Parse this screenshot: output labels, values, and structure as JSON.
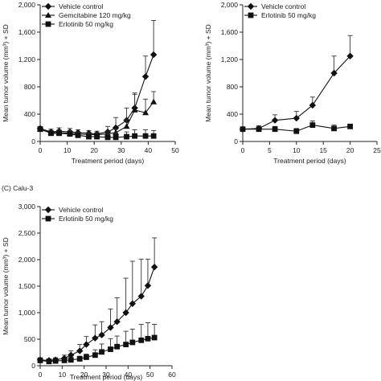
{
  "chart_data": [
    {
      "type": "line",
      "panel_label": "",
      "xlabel": "Treatment period (days)",
      "ylabel": "Mean tumor volume (mm³) + SD",
      "xlim": [
        0,
        50
      ],
      "ylim": [
        0,
        2000
      ],
      "xticks": [
        "0",
        "10",
        "20",
        "30",
        "40",
        "50"
      ],
      "xtick_values": [
        0,
        10,
        20,
        30,
        40,
        50
      ],
      "yticks": [
        "0",
        "400",
        "800",
        "1,200",
        "1,600",
        "2,000"
      ],
      "ytick_values": [
        0,
        400,
        800,
        1200,
        1600,
        2000
      ],
      "grid": false,
      "legend_position": "top-left",
      "series": [
        {
          "name": "Vehicle control",
          "marker": "diamond",
          "x": [
            0,
            4,
            7,
            11,
            14,
            18,
            21,
            25,
            28,
            32,
            35,
            39,
            42
          ],
          "y": [
            190,
            140,
            150,
            140,
            130,
            120,
            110,
            140,
            200,
            310,
            490,
            950,
            1270
          ],
          "sd": [
            30,
            40,
            50,
            50,
            40,
            40,
            40,
            80,
            150,
            180,
            200,
            300,
            500
          ]
        },
        {
          "name": "Gemcitabine 120 mg/kg",
          "marker": "triangle",
          "x": [
            0,
            4,
            7,
            11,
            14,
            18,
            21,
            25,
            28,
            32,
            35,
            39,
            42
          ],
          "y": [
            180,
            130,
            130,
            120,
            110,
            100,
            100,
            110,
            130,
            220,
            460,
            420,
            580
          ],
          "sd": [
            30,
            30,
            40,
            30,
            30,
            30,
            30,
            40,
            50,
            100,
            250,
            200,
            150
          ]
        },
        {
          "name": "Erlotinib 50 mg/kg",
          "marker": "square",
          "x": [
            0,
            4,
            7,
            11,
            14,
            18,
            21,
            25,
            28,
            32,
            35,
            39,
            42
          ],
          "y": [
            180,
            120,
            120,
            110,
            90,
            70,
            70,
            60,
            60,
            70,
            80,
            80,
            80
          ],
          "sd": [
            30,
            40,
            40,
            50,
            40,
            50,
            60,
            60,
            60,
            70,
            90,
            90,
            80
          ]
        }
      ]
    },
    {
      "type": "line",
      "panel_label": "",
      "xlabel": "Treatment period (days)",
      "ylabel": "Mean tumor volume (mm³) + SD",
      "xlim": [
        0,
        25
      ],
      "ylim": [
        0,
        2000
      ],
      "xticks": [
        "0",
        "5",
        "10",
        "15",
        "20",
        "25"
      ],
      "xtick_values": [
        0,
        5,
        10,
        15,
        20,
        25
      ],
      "yticks": [
        "0",
        "400",
        "800",
        "1,200",
        "1,600",
        "2,000"
      ],
      "ytick_values": [
        0,
        400,
        800,
        1200,
        1600,
        2000
      ],
      "grid": false,
      "legend_position": "top-left",
      "series": [
        {
          "name": "Vehicle control",
          "marker": "diamond",
          "x": [
            0,
            3,
            6,
            10,
            13,
            17,
            20
          ],
          "y": [
            180,
            190,
            310,
            340,
            530,
            1000,
            1250
          ],
          "sd": [
            30,
            40,
            80,
            100,
            120,
            250,
            300
          ]
        },
        {
          "name": "Erlotinib 50 mg/kg",
          "marker": "square",
          "x": [
            0,
            3,
            6,
            10,
            13,
            17,
            20
          ],
          "y": [
            180,
            180,
            180,
            150,
            240,
            190,
            220
          ],
          "sd": [
            20,
            30,
            40,
            40,
            60,
            50,
            30
          ]
        }
      ]
    },
    {
      "type": "line",
      "panel_label": "(C)  Calu-3",
      "xlabel": "Treatment period (days)",
      "ylabel": "Mean tumor volume (mm³) + SD",
      "xlim": [
        0,
        60
      ],
      "ylim": [
        0,
        3000
      ],
      "xticks": [
        "0",
        "10",
        "20",
        "30",
        "40",
        "50",
        "60"
      ],
      "xtick_values": [
        0,
        10,
        20,
        30,
        40,
        50,
        60
      ],
      "yticks": [
        "0",
        "500",
        "1,000",
        "1,500",
        "2,000",
        "2,500",
        "3,000"
      ],
      "ytick_values": [
        0,
        500,
        1000,
        1500,
        2000,
        2500,
        3000
      ],
      "grid": false,
      "legend_position": "top-left",
      "series": [
        {
          "name": "Vehicle control",
          "marker": "diamond",
          "x": [
            0,
            4,
            7,
            11,
            14,
            18,
            21,
            25,
            28,
            32,
            35,
            39,
            42,
            46,
            49,
            52
          ],
          "y": [
            110,
            100,
            110,
            140,
            200,
            280,
            400,
            520,
            580,
            720,
            830,
            1000,
            1170,
            1310,
            1510,
            1860
          ],
          "sd": [
            40,
            30,
            40,
            60,
            80,
            120,
            150,
            250,
            250,
            350,
            450,
            650,
            800,
            700,
            500,
            550
          ]
        },
        {
          "name": "Erlotinib 50 mg/kg",
          "marker": "square",
          "x": [
            0,
            4,
            7,
            11,
            14,
            18,
            21,
            25,
            28,
            32,
            35,
            39,
            42,
            46,
            49,
            52
          ],
          "y": [
            100,
            80,
            90,
            100,
            110,
            130,
            160,
            200,
            260,
            310,
            360,
            400,
            440,
            480,
            510,
            530
          ],
          "sd": [
            30,
            30,
            30,
            40,
            40,
            50,
            60,
            100,
            150,
            200,
            200,
            250,
            250,
            300,
            300,
            250
          ]
        }
      ]
    }
  ]
}
